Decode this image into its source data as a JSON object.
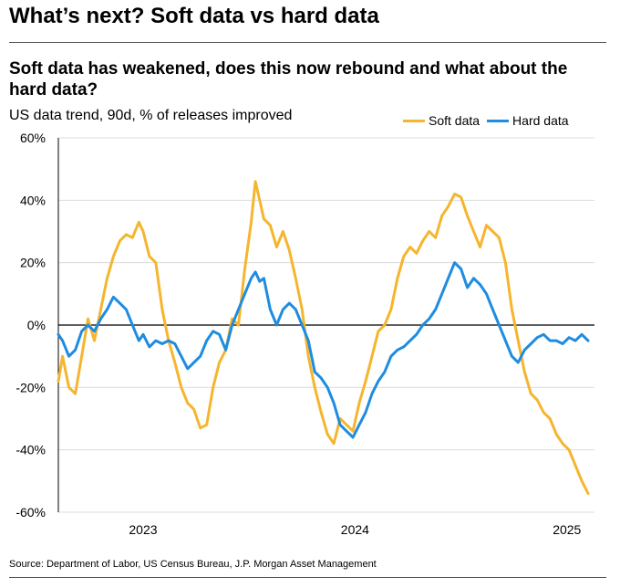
{
  "header": {
    "title": "What’s next? Soft data vs hard data"
  },
  "chart_data": {
    "type": "line",
    "title": "Soft data has weakened, does this now rebound and what about the hard data?",
    "subtitle": "US data trend, 90d, % of releases improved",
    "ylim": [
      -60,
      60
    ],
    "yticks": [
      60,
      40,
      20,
      0,
      -20,
      -40,
      -60
    ],
    "ytick_labels": [
      "60%",
      "40%",
      "20%",
      "0%",
      "-20%",
      "-40%",
      "-60%"
    ],
    "xlim": [
      2022.6,
      2025.13
    ],
    "xticks": [
      2023,
      2024,
      2025
    ],
    "xtick_labels": [
      "2023",
      "2024",
      "2025"
    ],
    "legend_position": "top-right",
    "series": [
      {
        "name": "Soft data",
        "color": "#F5B52E",
        "x": [
          2022.6,
          2022.62,
          2022.65,
          2022.68,
          2022.71,
          2022.74,
          2022.77,
          2022.8,
          2022.83,
          2022.86,
          2022.89,
          2022.92,
          2022.95,
          2022.98,
          2023.0,
          2023.03,
          2023.06,
          2023.09,
          2023.12,
          2023.15,
          2023.18,
          2023.21,
          2023.24,
          2023.27,
          2023.3,
          2023.33,
          2023.36,
          2023.39,
          2023.42,
          2023.45,
          2023.48,
          2023.51,
          2023.53,
          2023.55,
          2023.57,
          2023.6,
          2023.63,
          2023.66,
          2023.69,
          2023.72,
          2023.75,
          2023.78,
          2023.81,
          2023.84,
          2023.87,
          2023.9,
          2023.93,
          2023.96,
          2023.99,
          2024.02,
          2024.05,
          2024.08,
          2024.11,
          2024.14,
          2024.17,
          2024.2,
          2024.23,
          2024.26,
          2024.29,
          2024.32,
          2024.35,
          2024.38,
          2024.41,
          2024.44,
          2024.47,
          2024.5,
          2024.53,
          2024.56,
          2024.59,
          2024.62,
          2024.65,
          2024.68,
          2024.71,
          2024.74,
          2024.77,
          2024.8,
          2024.83,
          2024.86,
          2024.89,
          2024.92,
          2024.95,
          2024.98,
          2025.01,
          2025.04,
          2025.07,
          2025.1
        ],
        "values": [
          -18,
          -10,
          -20,
          -22,
          -10,
          2,
          -5,
          5,
          15,
          22,
          27,
          29,
          28,
          33,
          30,
          22,
          20,
          5,
          -5,
          -12,
          -20,
          -25,
          -27,
          -33,
          -32,
          -20,
          -12,
          -8,
          2,
          0,
          18,
          33,
          46,
          40,
          34,
          32,
          25,
          30,
          24,
          15,
          5,
          -10,
          -20,
          -28,
          -35,
          -38,
          -30,
          -32,
          -34,
          -25,
          -18,
          -10,
          -2,
          0,
          5,
          15,
          22,
          25,
          23,
          27,
          30,
          28,
          35,
          38,
          42,
          41,
          35,
          30,
          25,
          32,
          30,
          28,
          20,
          5,
          -5,
          -15,
          -22,
          -24,
          -28,
          -30,
          -35,
          -38,
          -40,
          -45,
          -50,
          -54
        ]
      },
      {
        "name": "Hard data",
        "color": "#1E8CE0",
        "x": [
          2022.6,
          2022.62,
          2022.65,
          2022.68,
          2022.71,
          2022.74,
          2022.77,
          2022.8,
          2022.83,
          2022.86,
          2022.89,
          2022.92,
          2022.95,
          2022.98,
          2023.0,
          2023.03,
          2023.06,
          2023.09,
          2023.12,
          2023.15,
          2023.18,
          2023.21,
          2023.24,
          2023.27,
          2023.3,
          2023.33,
          2023.36,
          2023.39,
          2023.42,
          2023.45,
          2023.48,
          2023.51,
          2023.53,
          2023.55,
          2023.57,
          2023.6,
          2023.63,
          2023.66,
          2023.69,
          2023.72,
          2023.75,
          2023.78,
          2023.81,
          2023.84,
          2023.87,
          2023.9,
          2023.93,
          2023.96,
          2023.99,
          2024.02,
          2024.05,
          2024.08,
          2024.11,
          2024.14,
          2024.17,
          2024.2,
          2024.23,
          2024.26,
          2024.29,
          2024.32,
          2024.35,
          2024.38,
          2024.41,
          2024.44,
          2024.47,
          2024.5,
          2024.53,
          2024.56,
          2024.59,
          2024.62,
          2024.65,
          2024.68,
          2024.71,
          2024.74,
          2024.77,
          2024.8,
          2024.83,
          2024.86,
          2024.89,
          2024.92,
          2024.95,
          2024.98,
          2025.01,
          2025.04,
          2025.07,
          2025.1
        ],
        "values": [
          -3,
          -5,
          -10,
          -8,
          -2,
          0,
          -2,
          2,
          5,
          9,
          7,
          5,
          0,
          -5,
          -3,
          -7,
          -5,
          -6,
          -5,
          -6,
          -10,
          -14,
          -12,
          -10,
          -5,
          -2,
          -3,
          -8,
          0,
          5,
          10,
          15,
          17,
          14,
          15,
          5,
          0,
          5,
          7,
          5,
          0,
          -5,
          -15,
          -17,
          -20,
          -25,
          -32,
          -34,
          -36,
          -32,
          -28,
          -22,
          -18,
          -15,
          -10,
          -8,
          -7,
          -5,
          -3,
          0,
          2,
          5,
          10,
          15,
          20,
          18,
          12,
          15,
          13,
          10,
          5,
          0,
          -5,
          -10,
          -12,
          -8,
          -6,
          -4,
          -3,
          -5,
          -5,
          -6,
          -4,
          -5,
          -3,
          -5
        ]
      }
    ],
    "zero_line": true
  },
  "source": "Source: Department of Labor, US Census Bureau, J.P. Morgan Asset Management"
}
